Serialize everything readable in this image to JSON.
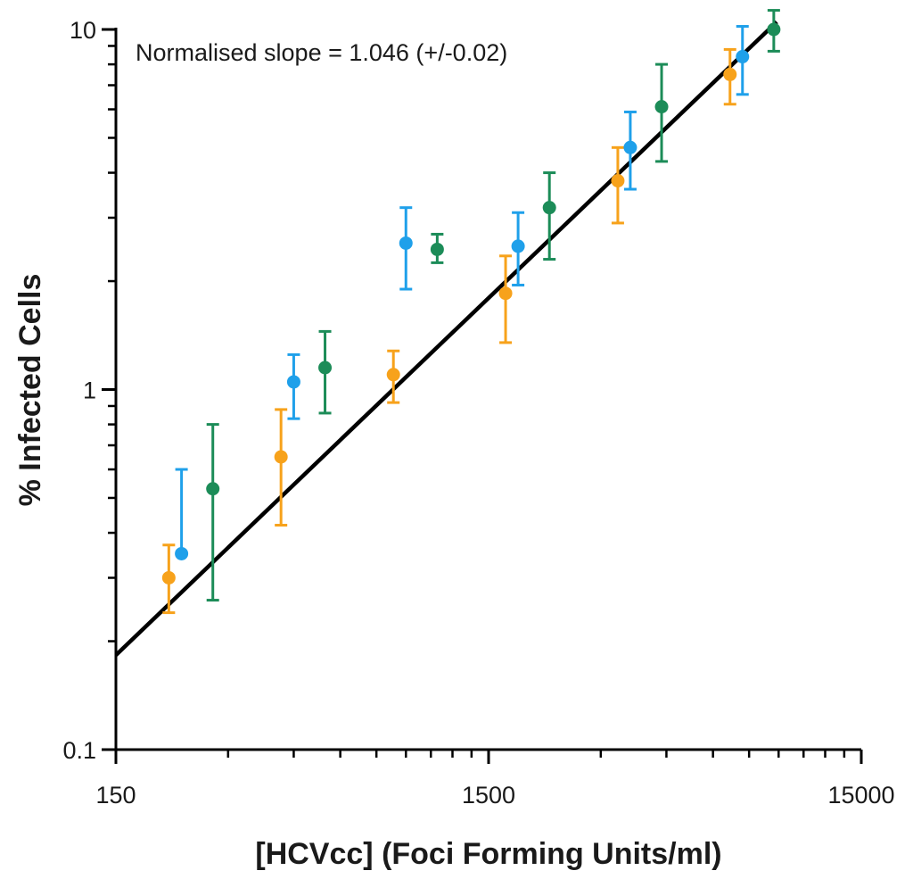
{
  "chart_data": {
    "type": "scatter",
    "xscale": "log",
    "yscale": "log",
    "xlim": [
      150,
      15000
    ],
    "ylim": [
      0.1,
      10
    ],
    "xlabel": "[HCVcc] (Foci Forming Units/ml)",
    "ylabel": "% Infected Cells",
    "x_tick_labels": [
      "150",
      "1500",
      "15000"
    ],
    "y_tick_labels": [
      "0.1",
      "1",
      "10"
    ],
    "grid": false,
    "legend": "none",
    "annotation": "Normalised slope = 1.046 (+/-0.02)",
    "series": [
      {
        "color": "#F7A21B",
        "points": [
          {
            "x": 208,
            "y": 0.3,
            "y_low": 0.24,
            "y_high": 0.37
          },
          {
            "x": 416,
            "y": 0.65,
            "y_low": 0.42,
            "y_high": 0.88
          },
          {
            "x": 833,
            "y": 1.1,
            "y_low": 0.92,
            "y_high": 1.28
          },
          {
            "x": 1666,
            "y": 1.85,
            "y_low": 1.35,
            "y_high": 2.35
          },
          {
            "x": 3333,
            "y": 3.8,
            "y_low": 2.9,
            "y_high": 4.7
          },
          {
            "x": 6666,
            "y": 7.5,
            "y_low": 6.2,
            "y_high": 8.8
          }
        ]
      },
      {
        "color": "#1FA0EA",
        "points": [
          {
            "x": 225,
            "y": 0.35,
            "y_low": null,
            "y_high": 0.6
          },
          {
            "x": 450,
            "y": 1.05,
            "y_low": 0.83,
            "y_high": 1.25
          },
          {
            "x": 900,
            "y": 2.55,
            "y_low": 1.9,
            "y_high": 3.2
          },
          {
            "x": 1800,
            "y": 2.5,
            "y_low": 1.95,
            "y_high": 3.1
          },
          {
            "x": 3600,
            "y": 4.7,
            "y_low": 3.6,
            "y_high": 5.9
          },
          {
            "x": 7200,
            "y": 8.4,
            "y_low": 6.6,
            "y_high": 10.2
          }
        ]
      },
      {
        "color": "#1C8C58",
        "points": [
          {
            "x": 273,
            "y": 0.53,
            "y_low": 0.26,
            "y_high": 0.8
          },
          {
            "x": 546,
            "y": 1.15,
            "y_low": 0.86,
            "y_high": 1.45
          },
          {
            "x": 1092,
            "y": 2.45,
            "y_low": 2.25,
            "y_high": 2.7
          },
          {
            "x": 2184,
            "y": 3.2,
            "y_low": 2.3,
            "y_high": 4.0
          },
          {
            "x": 4368,
            "y": 6.1,
            "y_low": 4.3,
            "y_high": 8.0
          },
          {
            "x": 8736,
            "y": 10.0,
            "y_low": 8.7,
            "y_high": 11.3
          }
        ]
      }
    ],
    "fit_line": {
      "color": "#000000",
      "points": [
        {
          "x": 150,
          "y": 0.183
        },
        {
          "x": 8900,
          "y": 10.5
        }
      ]
    }
  }
}
